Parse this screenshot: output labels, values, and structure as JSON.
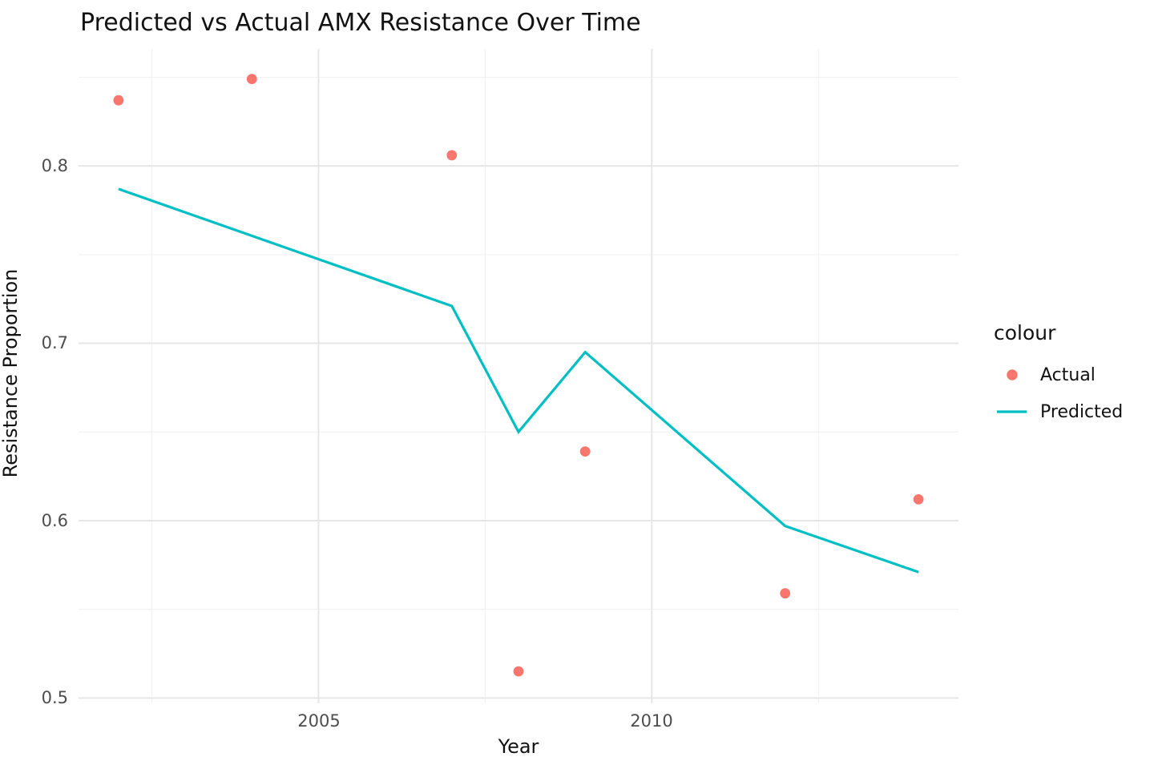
{
  "title": "Predicted vs Actual AMX Resistance Over Time",
  "colors": {
    "actual": "#F8766D",
    "predicted": "#00BFC4",
    "grid_major": "#E6E6E6",
    "grid_minor": "#F2F2F2",
    "tick_label": "#4D4D4D",
    "text": "#121212",
    "background": "#FFFFFF"
  },
  "legend": {
    "title": "colour",
    "items": [
      {
        "label": "Actual",
        "key": "point-key"
      },
      {
        "label": "Predicted",
        "key": "line-key"
      }
    ]
  },
  "axis": {
    "x_tick_labels": [
      "2005",
      "2010"
    ],
    "y_tick_labels": [
      "0.5",
      "0.6",
      "0.7",
      "0.8"
    ]
  },
  "chart_data": {
    "type": "line",
    "title": "Predicted vs Actual AMX Resistance Over Time",
    "xlabel": "Year",
    "ylabel": "Resistance Proportion",
    "xlim": [
      2001.4,
      2014.6
    ],
    "ylim": [
      0.497,
      0.866
    ],
    "x_major_breaks": [
      2005,
      2010
    ],
    "x_minor_breaks": [
      2002.5,
      2007.5,
      2012.5
    ],
    "y_major_breaks": [
      0.5,
      0.6,
      0.7,
      0.8
    ],
    "y_minor_breaks": [
      0.55,
      0.65,
      0.75,
      0.85
    ],
    "grid": true,
    "legend_position": "right",
    "series": [
      {
        "name": "Actual",
        "type": "scatter",
        "color": "#F8766D",
        "x": [
          2002,
          2004,
          2007,
          2008,
          2009,
          2012,
          2014
        ],
        "y": [
          0.837,
          0.849,
          0.806,
          0.515,
          0.639,
          0.559,
          0.612
        ]
      },
      {
        "name": "Predicted",
        "type": "line",
        "color": "#00BFC4",
        "x": [
          2002,
          2007,
          2008,
          2009,
          2012,
          2014
        ],
        "y": [
          0.787,
          0.721,
          0.65,
          0.695,
          0.597,
          0.571
        ]
      }
    ]
  }
}
